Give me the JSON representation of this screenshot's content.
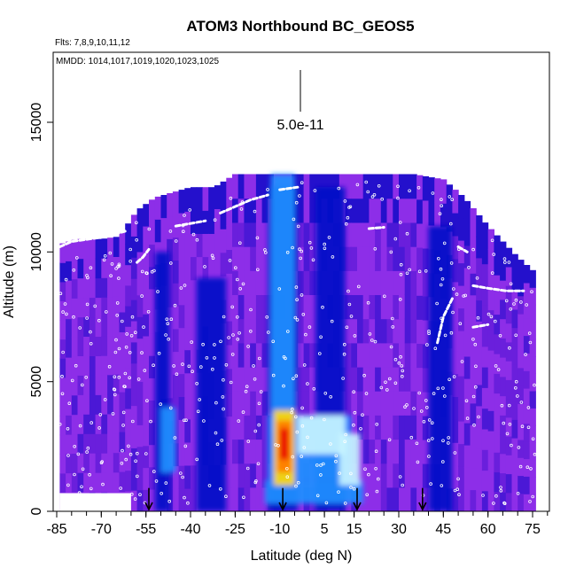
{
  "chart_data": {
    "type": "heatmap",
    "title": "ATOM3 Northbound BC_GEOS5",
    "flights_label": "Flts: 7,8,9,10,11,12",
    "dates_label": "MMDD: 1014,1017,1019,1020,1023,1025",
    "xlabel": "Latitude (deg N)",
    "ylabel": "Altitude (m)",
    "xlim": [
      -87,
      80
    ],
    "ylim": [
      0,
      17700
    ],
    "x_ticks": [
      -85,
      -70,
      -55,
      -40,
      -25,
      -10,
      5,
      15,
      30,
      45,
      60,
      75
    ],
    "y_ticks": [
      0,
      5000,
      10000,
      15000
    ],
    "scale_bar_label": "5.0e-11",
    "colors": {
      "background": "#8d2ee8",
      "low": "#6a1fdc",
      "mid": "#0010c8",
      "highblue": "#1e90ff",
      "cyan": "#c8f4ff",
      "yellow": "#ffd800",
      "orange": "#ff7a00",
      "red": "#e80000",
      "frame": "#000000",
      "track": "#ffffff"
    },
    "arrows_latitude": [
      -54,
      -9,
      16,
      38
    ],
    "altitude_ceiling": [
      [
        -84,
        10300
      ],
      [
        -78,
        10500
      ],
      [
        -70,
        10500
      ],
      [
        -64,
        10600
      ],
      [
        -58,
        11600
      ],
      [
        -52,
        12100
      ],
      [
        -40,
        12500
      ],
      [
        -32,
        12500
      ],
      [
        -25,
        13000
      ],
      [
        -15,
        13000
      ],
      [
        -5,
        13000
      ],
      [
        5,
        13000
      ],
      [
        20,
        13000
      ],
      [
        35,
        13000
      ],
      [
        45,
        12800
      ],
      [
        52,
        12100
      ],
      [
        60,
        11000
      ],
      [
        70,
        9800
      ],
      [
        76,
        9200
      ]
    ],
    "fields": [
      {
        "x": [
          -52,
          -47
        ],
        "y": [
          0,
          10000
        ],
        "level": "mid"
      },
      {
        "x": [
          -50,
          -45
        ],
        "y": [
          1500,
          4000
        ],
        "level": "highblue"
      },
      {
        "x": [
          -14,
          -4
        ],
        "y": [
          0,
          12500
        ],
        "level": "mid"
      },
      {
        "x": [
          -13,
          -5
        ],
        "y": [
          3000,
          13000
        ],
        "level": "highblue"
      },
      {
        "x": [
          -38,
          -28
        ],
        "y": [
          0,
          9000
        ],
        "level": "mid"
      },
      {
        "x": [
          2,
          12
        ],
        "y": [
          0,
          12500
        ],
        "level": "mid"
      },
      {
        "x": [
          40,
          48
        ],
        "y": [
          0,
          11000
        ],
        "level": "mid"
      },
      {
        "x": [
          -15,
          18
        ],
        "y": [
          300,
          1200
        ],
        "level": "highblue"
      },
      {
        "x": [
          -14,
          14
        ],
        "y": [
          1200,
          3700
        ],
        "level": "highblue"
      },
      {
        "x": [
          -12,
          -5
        ],
        "y": [
          1000,
          3900
        ],
        "level": "yellow"
      },
      {
        "x": [
          -4,
          12
        ],
        "y": [
          2200,
          3700
        ],
        "level": "cyan"
      },
      {
        "x": [
          10,
          17
        ],
        "y": [
          1000,
          3000
        ],
        "level": "cyan"
      },
      {
        "x": [
          -11,
          -6
        ],
        "y": [
          1500,
          3500
        ],
        "level": "orange"
      },
      {
        "x": [
          -10,
          -7
        ],
        "y": [
          2000,
          3200
        ],
        "level": "red"
      }
    ],
    "flight_tracks": [
      [
        [
          -84,
          10200
        ],
        [
          -80,
          10400
        ],
        [
          -74,
          10500
        ],
        [
          -68,
          10600
        ],
        [
          -62,
          10800
        ]
      ],
      [
        [
          -58,
          9600
        ],
        [
          -56,
          9800
        ],
        [
          -54,
          10100
        ]
      ],
      [
        [
          -45,
          11000
        ],
        [
          -40,
          11100
        ],
        [
          -35,
          11200
        ]
      ],
      [
        [
          -30,
          11500
        ],
        [
          -26,
          11700
        ],
        [
          -20,
          12000
        ],
        [
          -14,
          12200
        ]
      ],
      [
        [
          -10,
          12400
        ],
        [
          -4,
          12500
        ]
      ],
      [
        [
          20,
          10900
        ],
        [
          25,
          10950
        ]
      ],
      [
        [
          50,
          10200
        ],
        [
          53,
          10000
        ]
      ],
      [
        [
          55,
          8700
        ],
        [
          60,
          8600
        ],
        [
          66,
          8500
        ],
        [
          72,
          8500
        ]
      ],
      [
        [
          55,
          7100
        ],
        [
          60,
          7200
        ]
      ],
      [
        [
          48,
          8200
        ],
        [
          45,
          7500
        ],
        [
          43,
          6500
        ]
      ]
    ]
  }
}
